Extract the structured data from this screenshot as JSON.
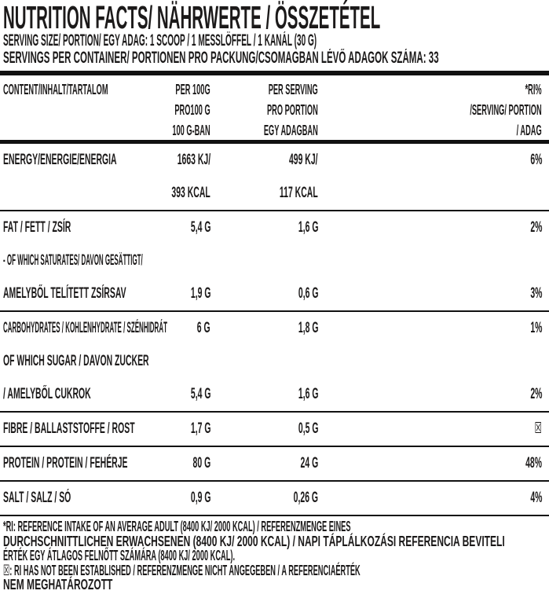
{
  "header": {
    "title": "NUTRITION FACTS/ NÄHRWERTE / ÖSSZETÉTEL",
    "serving_size": "SERVING SIZE/ PORTION/ EGY ADAG: 1 SCOOP / 1 MESSLÖFFEL / 1 KANÁL (30 G)",
    "servings_per_container": "SERVINGS PER CONTAINER/ PORTIONEN PRO PACKUNG/CSOMAGBAN LÉVŐ ADAGOK SZÁMA: 33"
  },
  "table": {
    "columns": {
      "content": "CONTENT/INHALT/TARTALOM",
      "per_100g": [
        "PER 100G",
        "PRO100 G",
        "100 G-BAN"
      ],
      "per_serving": [
        "PER SERVING",
        "PRO PORTION",
        "EGY ADAGBAN"
      ],
      "ri": [
        "*RI%",
        "/SERVING/ PORTION",
        "/ ADAG"
      ]
    },
    "rows": [
      {
        "label": "ENERGY/ENERGIE/ENERGIA",
        "per_100g": "1663 KJ/",
        "per_serving": "499 KJ/",
        "ri": "6%",
        "divider_after": false
      },
      {
        "label": "",
        "per_100g": "393 KCAL",
        "per_serving": "117 KCAL",
        "ri": "",
        "divider_after": true
      },
      {
        "label": "FAT / FETT / ZSÍR",
        "per_100g": "5,4 G",
        "per_serving": "1,6 G",
        "ri": "2%",
        "divider_after": false
      },
      {
        "label": "- OF WHICH SATURATES/ DAVON GESÄTTIGT/",
        "per_100g": "",
        "per_serving": "",
        "ri": "",
        "divider_after": false
      },
      {
        "label": "AMELYBŐL TELÍTETT ZSÍRSAV",
        "per_100g": "1,9 G",
        "per_serving": "0,6 G",
        "ri": "3%",
        "divider_after": true
      },
      {
        "label": "CARBOHYDRATES / KOHLENHYDRATE / SZÉNHIDRÁT",
        "per_100g": "6 G",
        "per_serving": "1,8 G",
        "ri": "1%",
        "divider_after": false
      },
      {
        "label": "OF WHICH SUGAR / DAVON ZUCKER",
        "per_100g": "",
        "per_serving": "",
        "ri": "",
        "divider_after": false
      },
      {
        "label": "/ AMELYBŐL CUKROK",
        "per_100g": "5,4 G",
        "per_serving": "1,6 G",
        "ri": "2%",
        "divider_after": true
      },
      {
        "label": "FIBRE / BALLASTSTOFFE / ROST",
        "per_100g": "1,7 G",
        "per_serving": "0,5 G",
        "ri": "☒",
        "divider_after": true
      },
      {
        "label": "PROTEIN / PROTEIN / FEHÉRJE",
        "per_100g": "80 G",
        "per_serving": "24 G",
        "ri": "48%",
        "divider_after": true
      },
      {
        "label": "SALT / SALZ / SÓ",
        "per_100g": "0,9 G",
        "per_serving": "0,26 G",
        "ri": "4%",
        "divider_after": true
      }
    ]
  },
  "footnote": {
    "lines": [
      "*RI: REFERENCE INTAKE OF AN AVERAGE ADULT (8400 KJ/ 2000 KCAL) / REFERENZMENGE EINES",
      "DURCHSCHNITTLICHEN ERWACHSENEN (8400 KJ/ 2000 KCAL) / NAPI TÁPLÁLKOZÁSI REFERENCIA BEVITELI",
      "ÉRTÉK EGY ÁTLAGOS FELNŐTT SZÁMÁRA (8400 KJ/ 2000 KCAL).",
      "☒: RI HAS NOT BEEN ESTABLISHED / REFERENZMENGE NICHT ANGEGEBEN / A REFERENCIAÉRTÉK",
      "NEM MEGHATÁROZOTT"
    ],
    "no_ri_symbol": "☒"
  },
  "colors": {
    "text": "#1c1a1a",
    "rule": "#111111",
    "background": "#ffffff"
  }
}
